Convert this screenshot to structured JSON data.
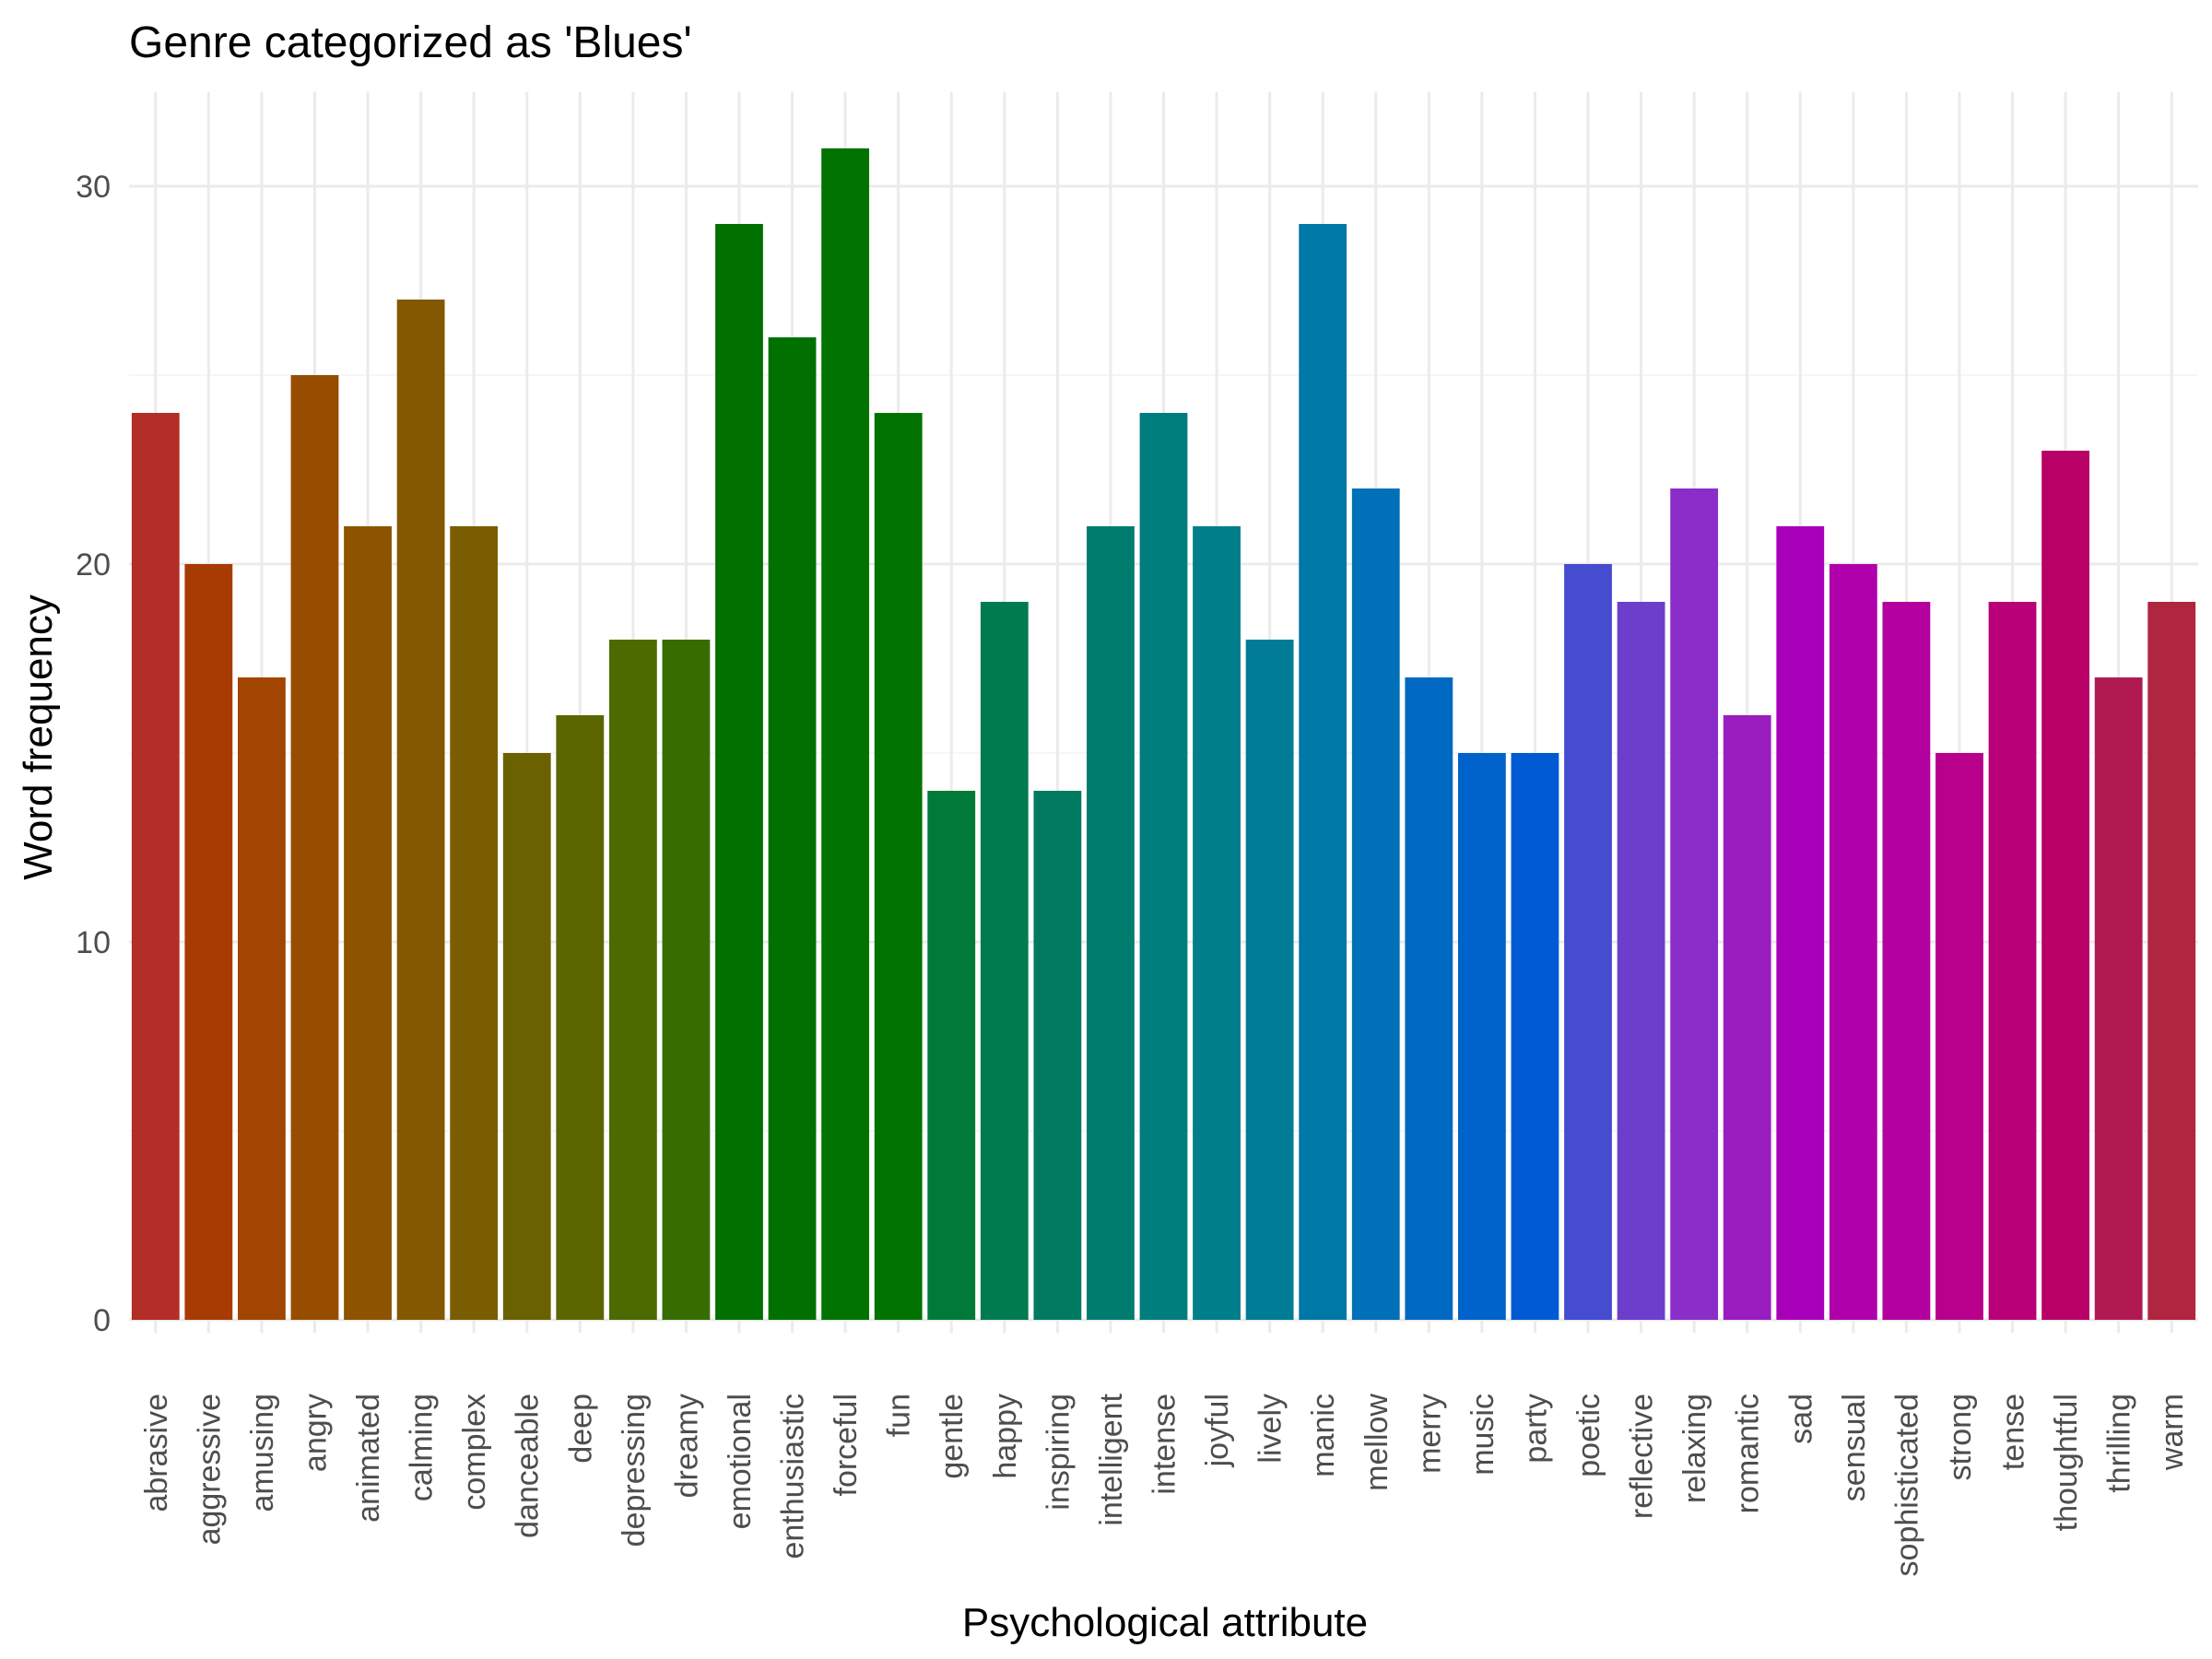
{
  "chart_data": {
    "type": "bar",
    "title": "Genre categorized as 'Blues'",
    "xlabel": "Psychological attribute",
    "ylabel": "Word frequency",
    "ylim": [
      0,
      32.5
    ],
    "yticks": [
      0,
      10,
      20,
      30
    ],
    "grid": true,
    "legend": "none",
    "categories": [
      "abrasive",
      "aggressive",
      "amusing",
      "angry",
      "animated",
      "calming",
      "complex",
      "danceable",
      "deep",
      "depressing",
      "dreamy",
      "emotional",
      "enthusiastic",
      "forceful",
      "fun",
      "gentle",
      "happy",
      "inspiring",
      "intelligent",
      "intense",
      "joyful",
      "lively",
      "manic",
      "mellow",
      "merry",
      "music",
      "party",
      "poetic",
      "reflective",
      "relaxing",
      "romantic",
      "sad",
      "sensual",
      "sophisticated",
      "strong",
      "tense",
      "thoughtful",
      "thrilling",
      "warm"
    ],
    "values": [
      24,
      20,
      17,
      25,
      21,
      27,
      21,
      15,
      16,
      18,
      18,
      29,
      26,
      31,
      24,
      14,
      19,
      14,
      21,
      24,
      21,
      18,
      29,
      22,
      17,
      15,
      15,
      20,
      19,
      22,
      16,
      21,
      20,
      19,
      15,
      19,
      23,
      17,
      19
    ],
    "colors": [
      "#B22E27",
      "#A83B03",
      "#A14500",
      "#974D00",
      "#8E5300",
      "#845800",
      "#795D00",
      "#6A6200",
      "#5C6600",
      "#4C6A00",
      "#376D00",
      "#007000",
      "#007000",
      "#007300",
      "#007300",
      "#007A38",
      "#007B50",
      "#007B61",
      "#007C6F",
      "#007D7D",
      "#007E8A",
      "#007C96",
      "#0078A7",
      "#0070B8",
      "#0069C3",
      "#0062CB",
      "#005AD4",
      "#454CD0",
      "#6D3DCC",
      "#8B2DC8",
      "#9A1DC0",
      "#A800B8",
      "#AF00AC",
      "#B4009E",
      "#B8008C",
      "#B90079",
      "#B80066",
      "#B01A50",
      "#B0253F"
    ]
  }
}
